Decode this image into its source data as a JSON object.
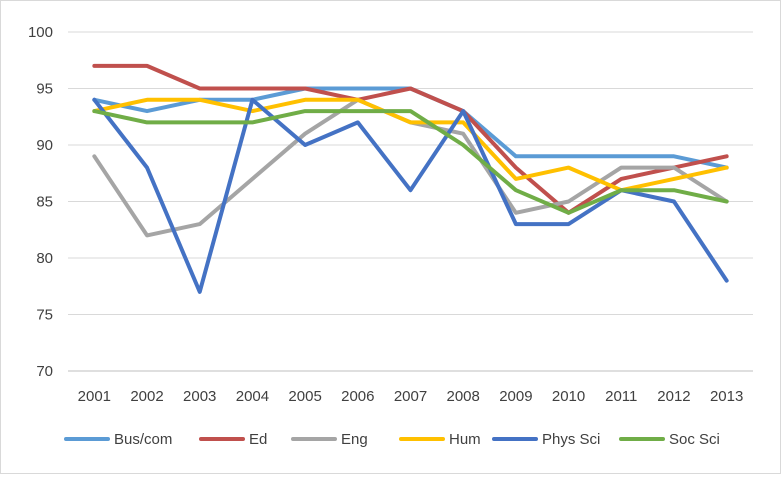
{
  "chart_data": {
    "type": "line",
    "title": "",
    "xlabel": "",
    "ylabel": "",
    "x": [
      "2001",
      "2002",
      "2003",
      "2004",
      "2005",
      "2006",
      "2007",
      "2008",
      "2009",
      "2010",
      "2011",
      "2012",
      "2013"
    ],
    "ylim": [
      70,
      100
    ],
    "yticks": [
      70,
      75,
      80,
      85,
      90,
      95,
      100
    ],
    "grid": true,
    "legend_position": "bottom",
    "series": [
      {
        "name": "Bus/com",
        "color": "#5B9BD5",
        "values": [
          94,
          93,
          94,
          94,
          95,
          95,
          95,
          93,
          89,
          89,
          89,
          89,
          88
        ]
      },
      {
        "name": "Ed",
        "color": "#C0504D",
        "values": [
          97,
          97,
          95,
          95,
          95,
          94,
          95,
          93,
          88,
          84,
          87,
          88,
          89
        ]
      },
      {
        "name": "Eng",
        "color": "#A5A5A5",
        "values": [
          89,
          82,
          83,
          87,
          91,
          94,
          92,
          91,
          84,
          85,
          88,
          88,
          85
        ]
      },
      {
        "name": "Hum",
        "color": "#FFC000",
        "values": [
          93,
          94,
          94,
          93,
          94,
          94,
          92,
          92,
          87,
          88,
          86,
          87,
          88
        ]
      },
      {
        "name": "Phys Sci",
        "color": "#4472C4",
        "values": [
          94,
          88,
          77,
          94,
          90,
          92,
          86,
          93,
          83,
          83,
          86,
          85,
          78
        ]
      },
      {
        "name": "Soc Sci",
        "color": "#70AD47",
        "values": [
          93,
          92,
          92,
          92,
          93,
          93,
          93,
          90,
          86,
          84,
          86,
          86,
          85
        ]
      }
    ]
  }
}
